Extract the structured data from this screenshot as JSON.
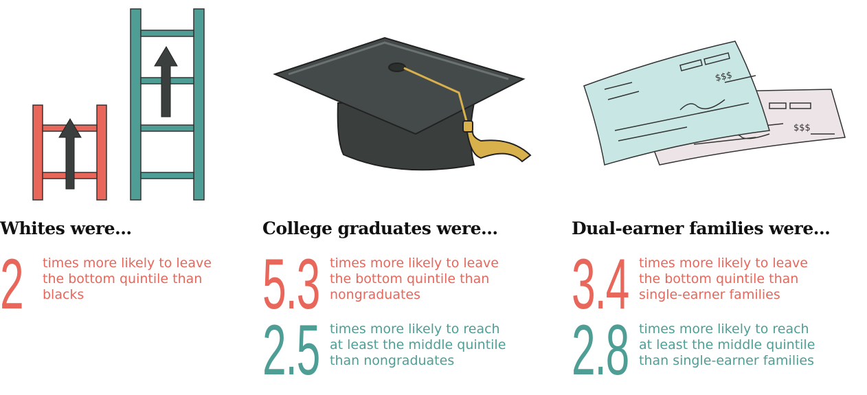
{
  "panels": [
    {
      "heading": "Whites were...",
      "stats": [
        {
          "number": "2",
          "lines": [
            "times more likely to leave",
            "the bottom quintile than",
            "blacks"
          ],
          "color": "#e8665a"
        }
      ]
    },
    {
      "heading": "College graduates were...",
      "stats": [
        {
          "number": "5.3",
          "lines": [
            "times more likely to leave",
            "the bottom quintile than",
            "nongraduates"
          ],
          "color": "#e8665a"
        },
        {
          "number": "2.5",
          "lines": [
            "times more likely to reach",
            "at least the middle quintile",
            "than nongraduates"
          ],
          "color": "#4f9e96"
        }
      ]
    },
    {
      "heading": "Dual-earner families were...",
      "stats": [
        {
          "number": "3.4",
          "lines": [
            "times more likely to leave",
            "the bottom quintile than",
            "single-earner families"
          ],
          "color": "#e8665a"
        },
        {
          "number": "2.8",
          "lines": [
            "times more likely to reach",
            "at least the middle quintile",
            "than single-earner families"
          ],
          "color": "#4f9e96"
        }
      ]
    }
  ]
}
